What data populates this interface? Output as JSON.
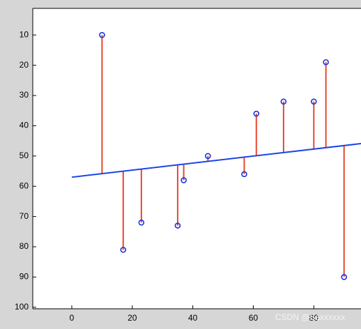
{
  "chart_data": {
    "type": "scatter",
    "points": {
      "x": [
        10,
        17,
        23,
        35,
        37,
        45,
        57,
        61,
        70,
        80,
        84,
        90
      ],
      "values": [
        10,
        81,
        72,
        73,
        58,
        50,
        56,
        36,
        32,
        32,
        19,
        90
      ],
      "color": "#1a33e0"
    },
    "fit": {
      "x": [
        0,
        95.6
      ],
      "values": [
        57,
        45.9
      ],
      "color": "#1a44e8"
    },
    "stem_color": "#e8472e",
    "xlim": [
      -12.9,
      95.6
    ],
    "ylim": [
      1.2,
      100.5
    ],
    "y_reversed": true,
    "xticks": [
      0,
      20,
      40,
      60,
      80
    ],
    "yticks": [
      10,
      20,
      30,
      40,
      50,
      60,
      70,
      80,
      90,
      100
    ],
    "watermark": "CSDN @Baxxxxxx"
  }
}
